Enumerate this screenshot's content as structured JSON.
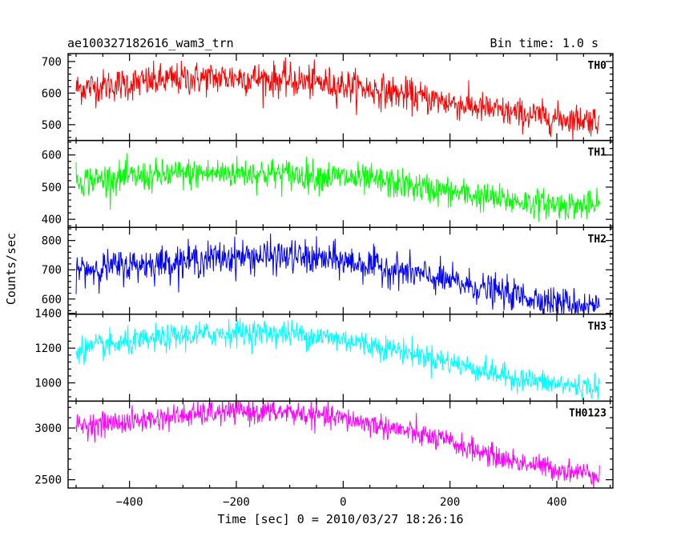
{
  "header": {
    "title": "ae100327182616_wam3_trn",
    "bin_time": "Bin time: 1.0 s"
  },
  "chart_data": {
    "type": "line",
    "title": "ae100327182616_wam3_trn",
    "subtitle": "Bin time: 1.0 s",
    "xlabel": "Time [sec] 0 = 2010/03/27 18:26:16",
    "ylabel": "Counts/sec",
    "xlim": [
      -515,
      505
    ],
    "x_ticks": [
      -400,
      -200,
      0,
      200,
      400
    ],
    "x_tick_labels": [
      "−400",
      "−200",
      "0",
      "200",
      "400"
    ],
    "grid": false,
    "panels": [
      {
        "name": "TH0",
        "color": "#ff0000",
        "ylim": [
          450,
          725
        ],
        "y_ticks": [
          500,
          600,
          700
        ],
        "x": [
          -500,
          -400,
          -300,
          -200,
          -100,
          0,
          100,
          200,
          300,
          400,
          480
        ],
        "values": [
          615,
          630,
          645,
          650,
          640,
          625,
          600,
          570,
          540,
          520,
          515
        ]
      },
      {
        "name": "TH1",
        "color": "#00ff00",
        "ylim": [
          375,
          645
        ],
        "y_ticks": [
          400,
          500,
          600
        ],
        "x": [
          -500,
          -400,
          -300,
          -200,
          -100,
          0,
          100,
          200,
          300,
          400,
          480
        ],
        "values": [
          520,
          530,
          540,
          545,
          540,
          530,
          510,
          485,
          460,
          445,
          440
        ]
      },
      {
        "name": "TH2",
        "color": "#0000ff",
        "ylim": [
          548,
          845
        ],
        "y_ticks": [
          600,
          700,
          800
        ],
        "x": [
          -500,
          -400,
          -300,
          -200,
          -100,
          0,
          100,
          200,
          300,
          400,
          480
        ],
        "values": [
          700,
          715,
          730,
          745,
          745,
          730,
          700,
          660,
          620,
          590,
          575
        ]
      },
      {
        "name": "TH3",
        "color": "#00ffff",
        "ylim": [
          895,
          1395
        ],
        "y_ticks": [
          1000,
          1200,
          1400
        ],
        "x": [
          -500,
          -400,
          -300,
          -200,
          -100,
          0,
          100,
          200,
          300,
          400,
          480
        ],
        "values": [
          1190,
          1230,
          1270,
          1290,
          1285,
          1250,
          1190,
          1120,
          1040,
          990,
          970
        ]
      },
      {
        "name": "TH0123",
        "color": "#ff00ff",
        "ylim": [
          2420,
          3260
        ],
        "y_ticks": [
          2500,
          3000
        ],
        "x": [
          -500,
          -400,
          -300,
          -200,
          -100,
          0,
          100,
          200,
          300,
          400,
          480
        ],
        "values": [
          3020,
          3060,
          3120,
          3160,
          3150,
          3090,
          2990,
          2860,
          2700,
          2600,
          2550
        ]
      }
    ]
  }
}
